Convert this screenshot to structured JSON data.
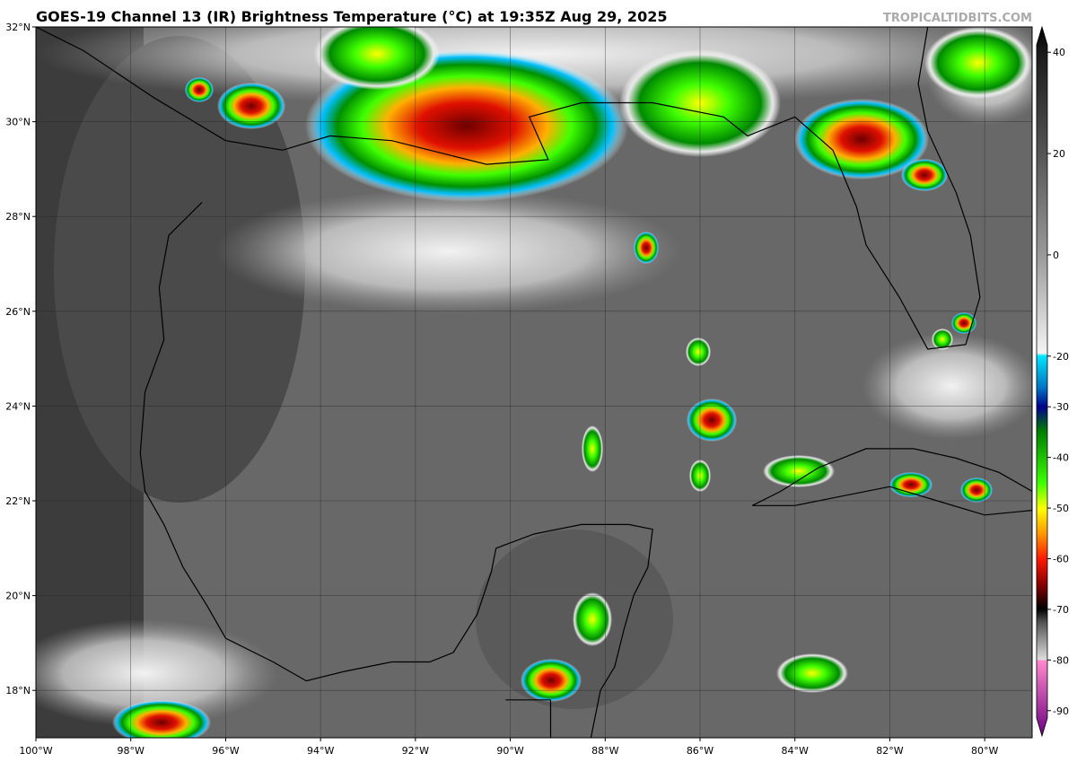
{
  "map": {
    "title": "GOES-19 Channel 13 (IR) Brightness Temperature (°C) at 19:35Z Aug 29, 2025",
    "credit": "TROPICALTIDBITS.COM",
    "lon_range": [
      -100,
      -79
    ],
    "lat_range": [
      17,
      32
    ],
    "latitudes": [
      {
        "value": 32,
        "label": "32°N"
      },
      {
        "value": 30,
        "label": "30°N"
      },
      {
        "value": 28,
        "label": "28°N"
      },
      {
        "value": 26,
        "label": "26°N"
      },
      {
        "value": 24,
        "label": "24°N"
      },
      {
        "value": 22,
        "label": "22°N"
      },
      {
        "value": 20,
        "label": "20°N"
      },
      {
        "value": 18,
        "label": "18°N"
      }
    ],
    "longitudes": [
      {
        "value": -100,
        "label": "100°W"
      },
      {
        "value": -98,
        "label": "98°W"
      },
      {
        "value": -96,
        "label": "96°W"
      },
      {
        "value": -94,
        "label": "94°W"
      },
      {
        "value": -92,
        "label": "92°W"
      },
      {
        "value": -90,
        "label": "90°W"
      },
      {
        "value": -88,
        "label": "88°W"
      },
      {
        "value": -86,
        "label": "86°W"
      },
      {
        "value": -84,
        "label": "84°W"
      },
      {
        "value": -82,
        "label": "82°W"
      },
      {
        "value": -80,
        "label": "80°W"
      }
    ],
    "colorbar": {
      "range": [
        -95,
        45
      ],
      "ticks": [
        40,
        20,
        0,
        -20,
        -30,
        -40,
        -50,
        -60,
        -70,
        -80,
        -90
      ]
    }
  }
}
